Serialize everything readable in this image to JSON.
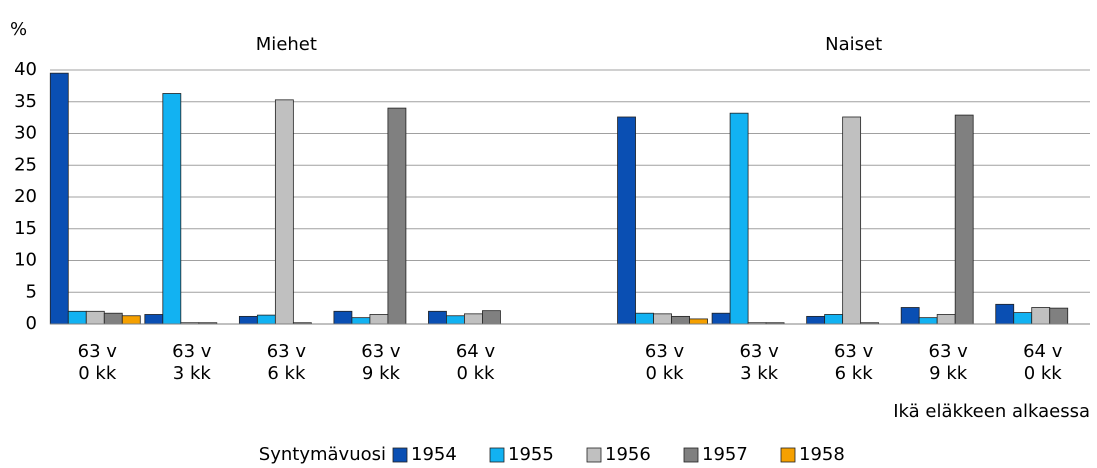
{
  "chart_data": {
    "type": "bar",
    "y_label": "%",
    "x_label": "Ikä eläkkeen alkaessa",
    "legend_title": "Syntymävuosi",
    "legend": [
      {
        "name": "1954",
        "color": "#0a4fb3"
      },
      {
        "name": "1955",
        "color": "#12b2f2"
      },
      {
        "name": "1956",
        "color": "#c0c0c0"
      },
      {
        "name": "1957",
        "color": "#808080"
      },
      {
        "name": "1958",
        "color": "#f5a000"
      }
    ],
    "ylim": [
      0,
      40
    ],
    "yticks": [
      0,
      5,
      10,
      15,
      20,
      25,
      30,
      35,
      40
    ],
    "grid": true,
    "panels": [
      {
        "title": "Miehet",
        "categories": [
          [
            "63 v",
            "0 kk"
          ],
          [
            "63 v",
            "3 kk"
          ],
          [
            "63 v",
            "6 kk"
          ],
          [
            "63 v",
            "9 kk"
          ],
          [
            "64 v",
            "0 kk"
          ]
        ],
        "series": [
          {
            "values": [
              39.5,
              1.5,
              1.2,
              2.0,
              2.0
            ]
          },
          {
            "values": [
              2.0,
              36.3,
              1.4,
              1.0,
              1.3
            ]
          },
          {
            "values": [
              2.0,
              0.2,
              35.3,
              1.5,
              1.6
            ]
          },
          {
            "values": [
              1.7,
              0.2,
              0.2,
              34.0,
              2.1
            ]
          },
          {
            "values": [
              1.3,
              null,
              null,
              null,
              null
            ]
          }
        ]
      },
      {
        "title": "Naiset",
        "categories": [
          [
            "63 v",
            "0 kk"
          ],
          [
            "63 v",
            "3 kk"
          ],
          [
            "63 v",
            "6 kk"
          ],
          [
            "63 v",
            "9 kk"
          ],
          [
            "64 v",
            "0 kk"
          ]
        ],
        "series": [
          {
            "values": [
              32.6,
              1.7,
              1.2,
              2.6,
              3.1
            ]
          },
          {
            "values": [
              1.7,
              33.2,
              1.5,
              1.0,
              1.8
            ]
          },
          {
            "values": [
              1.6,
              0.2,
              32.6,
              1.5,
              2.6
            ]
          },
          {
            "values": [
              1.2,
              0.2,
              0.2,
              32.9,
              2.5
            ]
          },
          {
            "values": [
              0.8,
              null,
              null,
              null,
              null
            ]
          }
        ]
      }
    ]
  }
}
